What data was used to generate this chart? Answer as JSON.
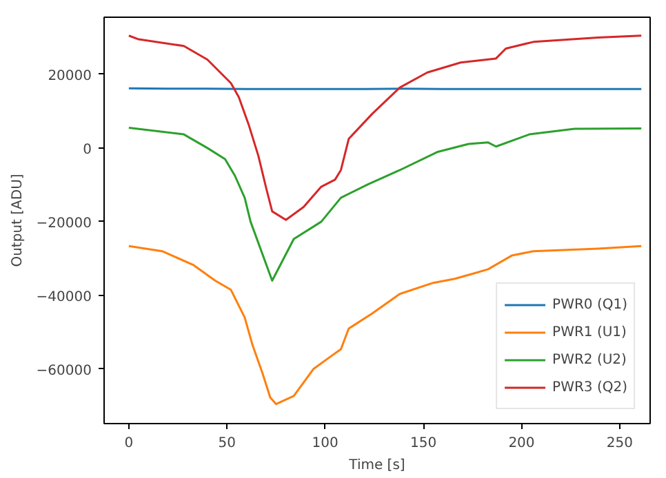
{
  "chart_data": {
    "type": "line",
    "xlabel": "Time [s]",
    "ylabel": "Output [ADU]",
    "xlim": [
      -12.6,
      265.5
    ],
    "ylim": [
      -74800,
      35500
    ],
    "xticks": [
      0,
      50,
      100,
      150,
      200,
      250
    ],
    "yticks": [
      -60000,
      -40000,
      -20000,
      0,
      20000
    ],
    "grid": false,
    "legend": "bottom right",
    "line_style": "solid",
    "marker": "none",
    "series": [
      {
        "name": "PWR0 (Q1)",
        "color": "#1f77b4",
        "x": [
          0,
          20,
          40,
          60,
          80,
          100,
          120,
          140,
          160,
          180,
          200,
          220,
          240,
          261
        ],
        "values": [
          16200,
          16100,
          16100,
          16000,
          16000,
          16000,
          16000,
          16100,
          16000,
          16000,
          16000,
          16000,
          16000,
          16000
        ]
      },
      {
        "name": "PWR1 (U1)",
        "color": "#ff7f0e",
        "x": [
          0,
          17,
          33,
          44,
          52,
          59,
          63,
          68,
          72,
          75,
          84,
          94,
          103,
          108,
          112,
          124,
          138,
          155,
          166,
          176,
          183,
          195,
          206,
          239,
          261
        ],
        "values": [
          -26600,
          -28000,
          -31800,
          -36000,
          -38500,
          -46000,
          -53500,
          -61000,
          -67700,
          -69500,
          -67300,
          -60000,
          -56500,
          -54600,
          -49000,
          -44900,
          -39600,
          -36600,
          -35500,
          -34000,
          -32900,
          -29200,
          -28000,
          -27300,
          -26600
        ]
      },
      {
        "name": "PWR2 (U2)",
        "color": "#2ca02c",
        "x": [
          0,
          28,
          40,
          49,
          54,
          59,
          62,
          73,
          84,
          98,
          108,
          122,
          138,
          157,
          173,
          183,
          187,
          204,
          227,
          261
        ],
        "values": [
          5500,
          3700,
          0,
          -3000,
          -7500,
          -13500,
          -20000,
          -36000,
          -24700,
          -20000,
          -13500,
          -9800,
          -6000,
          -1100,
          1100,
          1500,
          400,
          3700,
          5200,
          5300
        ]
      },
      {
        "name": "PWR3 (Q2)",
        "color": "#d62728",
        "x": [
          0,
          5,
          28,
          40,
          52,
          56,
          61,
          66,
          70,
          73,
          80,
          89,
          98,
          105,
          108,
          112,
          124,
          138,
          152,
          169,
          187,
          192,
          206,
          239,
          261
        ],
        "values": [
          30500,
          29500,
          27700,
          24000,
          17600,
          13800,
          6400,
          -2200,
          -11000,
          -17200,
          -19500,
          -16000,
          -10500,
          -8600,
          -6000,
          2500,
          9300,
          16400,
          20500,
          23200,
          24300,
          27000,
          28800,
          30000,
          30500
        ]
      }
    ]
  }
}
